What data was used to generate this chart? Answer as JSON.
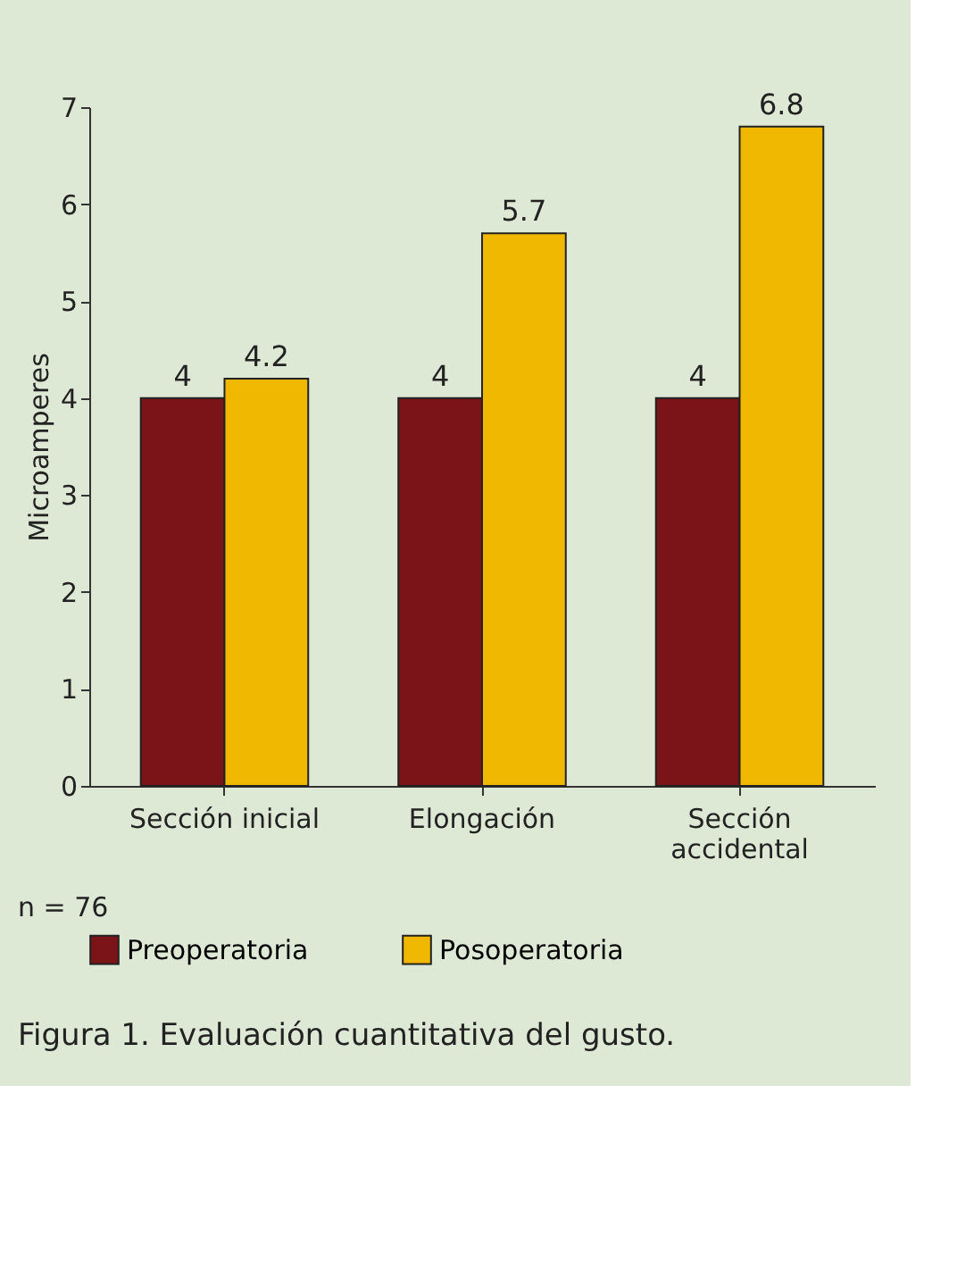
{
  "chart_data": {
    "type": "bar",
    "title": "Figura 1. Evaluación cuantitativa del gusto.",
    "ylabel": "Microamperes",
    "categories": [
      "Sección inicial",
      "Elongación",
      "Sección accidental"
    ],
    "series": [
      {
        "name": "Preoperatoria",
        "color": "#7b1418",
        "values": [
          4,
          4,
          4
        ]
      },
      {
        "name": "Posoperatoria",
        "color": "#f0b800",
        "values": [
          4.2,
          5.7,
          6.8
        ]
      }
    ],
    "ylim": [
      0,
      7
    ],
    "yticks": [
      0,
      1,
      2,
      3,
      4,
      5,
      6,
      7
    ],
    "grid": false,
    "data_labels": true,
    "legend": "bottom",
    "annotations": [
      "n = 76"
    ]
  }
}
